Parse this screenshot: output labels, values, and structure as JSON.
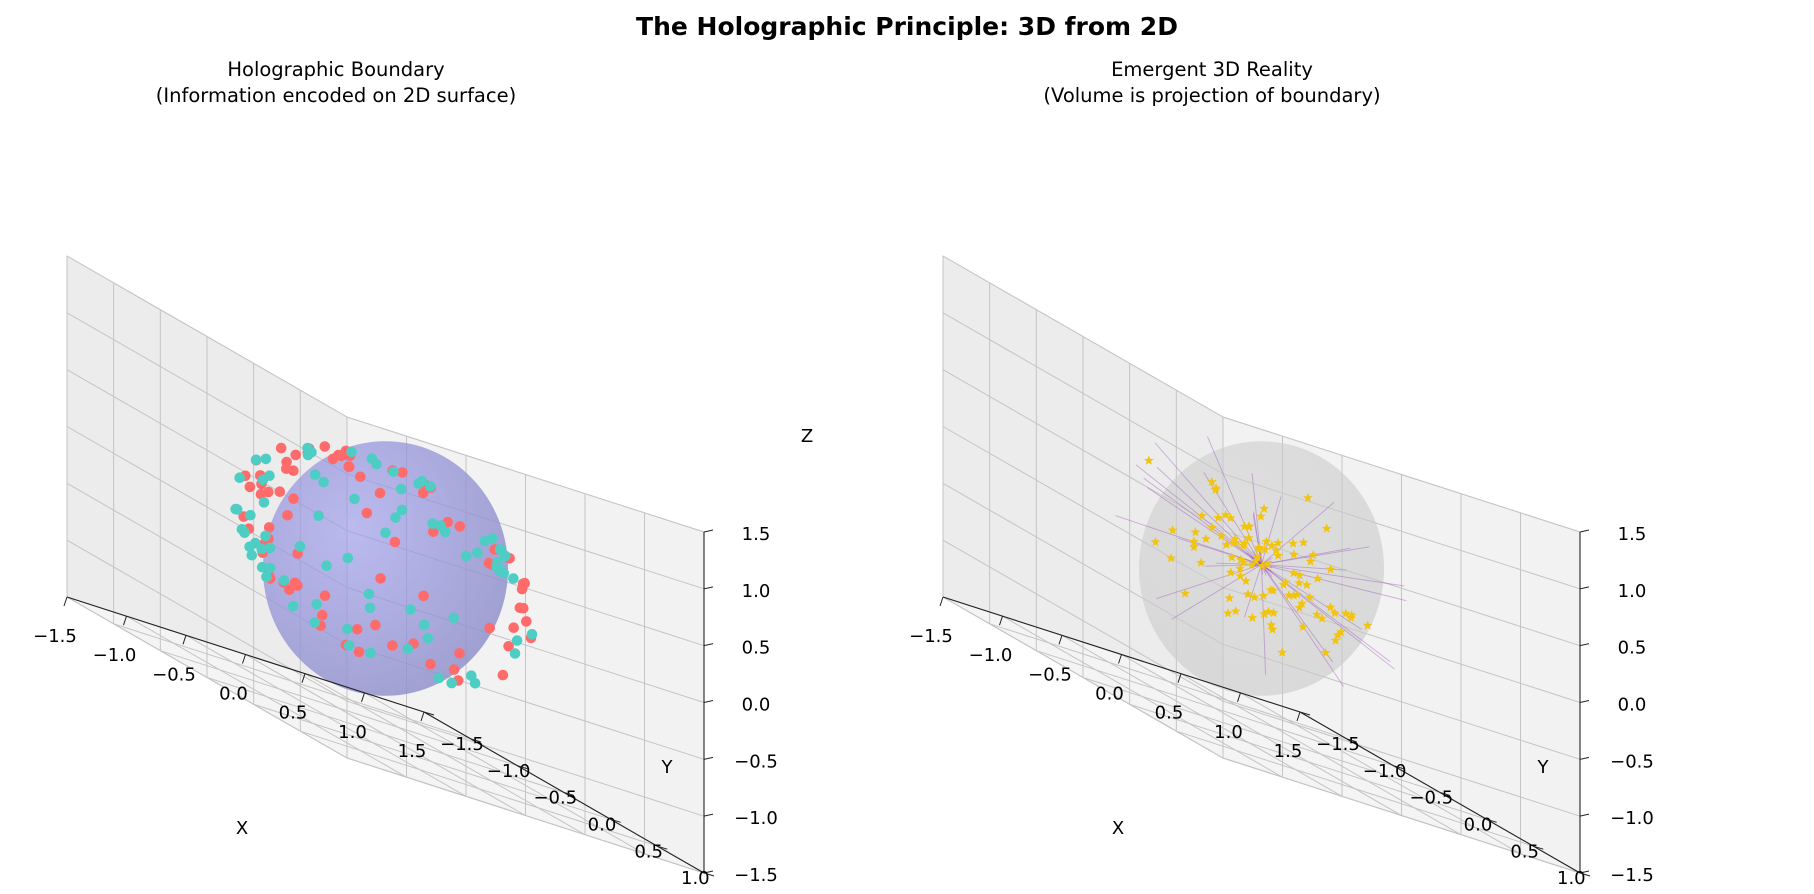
{
  "figure": {
    "title": "The Holographic Principle: 3D from 2D"
  },
  "chart_data": [
    {
      "type": "scatter3d",
      "title_line1": "Holographic Boundary",
      "title_line2": "(Information encoded on 2D surface)",
      "xlabel": "X",
      "ylabel": "Y",
      "zlabel": "Z",
      "xlim": [
        -1.5,
        1.5
      ],
      "ylim": [
        -1.5,
        1.5
      ],
      "zlim": [
        -1.5,
        1.5
      ],
      "ticks": [
        "−1.5",
        "−1.0",
        "−0.5",
        "0.0",
        "0.5",
        "1.0",
        "1.5"
      ],
      "tick_values": [
        -1.5,
        -1.0,
        -0.5,
        0.0,
        0.5,
        1.0,
        1.5
      ],
      "grid": true,
      "surface": {
        "shape": "sphere",
        "radius": 1.0,
        "color": "#9999ee"
      },
      "series": [
        {
          "color": "#ff6b6b",
          "marker": "circle",
          "count": 100,
          "distribution": "on sphere surface, radius 1.0"
        },
        {
          "color": "#4ecdc4",
          "marker": "circle",
          "count": 100,
          "distribution": "on sphere surface, radius 1.0"
        }
      ]
    },
    {
      "type": "scatter3d",
      "title_line1": "Emergent 3D Reality",
      "title_line2": "(Volume is projection of boundary)",
      "xlabel": "X",
      "ylabel": "Y",
      "zlabel": "",
      "xlim": [
        -1.5,
        1.5
      ],
      "ylim": [
        -1.5,
        1.5
      ],
      "zlim": [
        -1.5,
        1.5
      ],
      "ticks": [
        "−1.5",
        "−1.0",
        "−0.5",
        "0.0",
        "0.5",
        "1.0",
        "1.5"
      ],
      "tick_values": [
        -1.5,
        -1.0,
        -0.5,
        0.0,
        0.5,
        1.0,
        1.5
      ],
      "grid": true,
      "surface": {
        "shape": "sphere",
        "radius": 1.0,
        "color": "#cfcfcf"
      },
      "series": [
        {
          "color": "#f1c40f",
          "marker": "star",
          "count": 100,
          "distribution": "inside sphere volume, concentrated near center"
        }
      ],
      "rays": {
        "color": "#9b59b6",
        "count": 30,
        "description": "lines from boundary toward interior"
      }
    }
  ]
}
